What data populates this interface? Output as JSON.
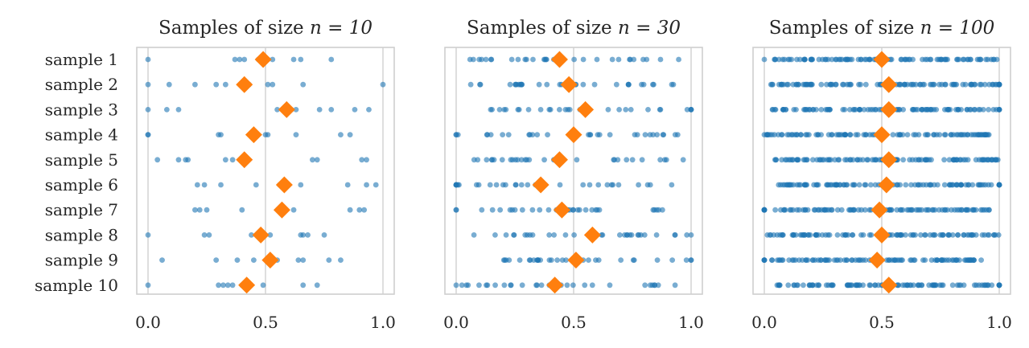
{
  "chart_data": [
    {
      "type": "scatter",
      "title": "Samples of size n = 10",
      "title_prefix": "Samples of size ",
      "title_math": "n = 10",
      "xlim": [
        0,
        1
      ],
      "xticks": [
        0.0,
        0.5,
        1.0
      ],
      "xtick_labels": [
        "0.0",
        "0.5",
        "1.0"
      ],
      "row_labels": [
        "sample 1",
        "sample 2",
        "sample 3",
        "sample 4",
        "sample 5",
        "sample 6",
        "sample 7",
        "sample 8",
        "sample 9",
        "sample 10"
      ],
      "means": [
        0.49,
        0.41,
        0.59,
        0.45,
        0.41,
        0.58,
        0.57,
        0.48,
        0.52,
        0.42
      ],
      "samples": [
        [
          0.0,
          0.37,
          0.39,
          0.41,
          0.47,
          0.51,
          0.53,
          0.62,
          0.65,
          0.78
        ],
        [
          0.0,
          0.09,
          0.2,
          0.29,
          0.33,
          0.43,
          0.51,
          0.53,
          0.66,
          1.0
        ],
        [
          0.0,
          0.08,
          0.13,
          0.55,
          0.61,
          0.63,
          0.73,
          0.78,
          0.88,
          0.94
        ],
        [
          0.0,
          0.0,
          0.3,
          0.31,
          0.45,
          0.5,
          0.51,
          0.63,
          0.82,
          0.86
        ],
        [
          0.04,
          0.13,
          0.16,
          0.17,
          0.33,
          0.36,
          0.7,
          0.72,
          0.91,
          0.93
        ],
        [
          0.21,
          0.24,
          0.31,
          0.46,
          0.56,
          0.58,
          0.65,
          0.85,
          0.93,
          0.97
        ],
        [
          0.2,
          0.22,
          0.25,
          0.4,
          0.56,
          0.58,
          0.62,
          0.86,
          0.9,
          0.92
        ],
        [
          0.0,
          0.24,
          0.26,
          0.44,
          0.48,
          0.52,
          0.65,
          0.66,
          0.68,
          0.75
        ],
        [
          0.06,
          0.29,
          0.38,
          0.45,
          0.52,
          0.55,
          0.64,
          0.66,
          0.77,
          0.82
        ],
        [
          0.0,
          0.3,
          0.32,
          0.34,
          0.36,
          0.4,
          0.42,
          0.49,
          0.66,
          0.72
        ]
      ]
    },
    {
      "type": "scatter",
      "title": "Samples of size n = 30",
      "title_prefix": "Samples of size ",
      "title_math": "n = 30",
      "xlim": [
        0,
        1
      ],
      "xticks": [
        0.0,
        0.5,
        1.0
      ],
      "xtick_labels": [
        "0.0",
        "0.5",
        "1.0"
      ],
      "means": [
        0.44,
        0.48,
        0.55,
        0.5,
        0.44,
        0.36,
        0.45,
        0.58,
        0.51,
        0.42
      ],
      "seeds": [
        11,
        23,
        37,
        41,
        53,
        67,
        71,
        83,
        97,
        101
      ]
    },
    {
      "type": "scatter",
      "title": "Samples of size n = 100",
      "title_prefix": "Samples of size ",
      "title_math": "n = 100",
      "xlim": [
        0,
        1
      ],
      "xticks": [
        0.0,
        0.5,
        1.0
      ],
      "xtick_labels": [
        "0.0",
        "0.5",
        "1.0"
      ],
      "means": [
        0.5,
        0.53,
        0.53,
        0.5,
        0.53,
        0.52,
        0.49,
        0.5,
        0.48,
        0.53
      ],
      "seeds": [
        7,
        13,
        19,
        29,
        31,
        43,
        47,
        59,
        61,
        73
      ]
    }
  ]
}
